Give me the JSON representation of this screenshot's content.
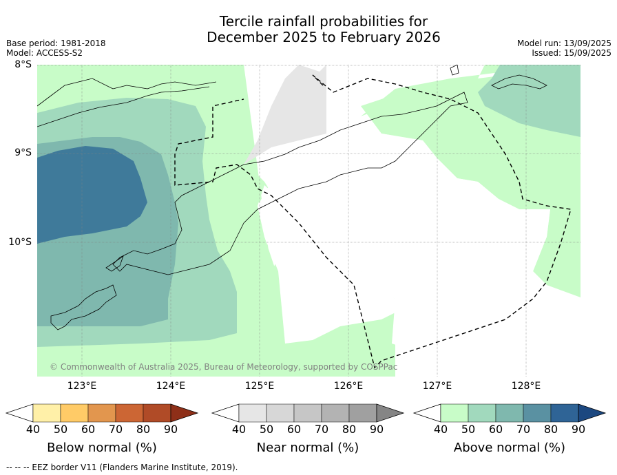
{
  "title": {
    "line1": "Tercile rainfall probabilities for",
    "line2": "December 2025 to February 2026"
  },
  "meta": {
    "base_period": "Base period: 1981-2018",
    "model": "Model: ACCESS-S2",
    "model_run": "Model run: 13/09/2025",
    "issued": "Issued: 15/09/2025"
  },
  "map": {
    "lat_labels": [
      "8°S",
      "9°S",
      "10°S"
    ],
    "lon_labels": [
      "123°E",
      "124°E",
      "125°E",
      "126°E",
      "127°E",
      "128°E"
    ],
    "copyright": "© Commonwealth of Australia 2025, Bureau of Meteorology, supported by COSPPac",
    "border_note": "--  --  -- EEZ border V11 (Flanders Marine Institute, 2019)."
  },
  "colorbars": {
    "below": {
      "title": "Below normal (%)",
      "ticks": [
        "40",
        "50",
        "60",
        "70",
        "80",
        "90"
      ],
      "colors": [
        "#ffffff",
        "#fff0a8",
        "#ffcb67",
        "#e2964e",
        "#cc6634",
        "#b04b27",
        "#8e2f18"
      ]
    },
    "near": {
      "title": "Near normal (%)",
      "ticks": [
        "40",
        "50",
        "60",
        "70",
        "80",
        "90"
      ],
      "colors": [
        "#ffffff",
        "#e6e6e6",
        "#d7d7d7",
        "#c6c6c6",
        "#b3b3b3",
        "#a0a0a0",
        "#858585"
      ]
    },
    "above": {
      "title": "Above normal (%)",
      "ticks": [
        "40",
        "50",
        "60",
        "70",
        "80",
        "90"
      ],
      "colors": [
        "#ffffff",
        "#c8fcc8",
        "#a1d9bd",
        "#7fb8ae",
        "#5a91a2",
        "#2f6496",
        "#1c4880"
      ]
    }
  }
}
